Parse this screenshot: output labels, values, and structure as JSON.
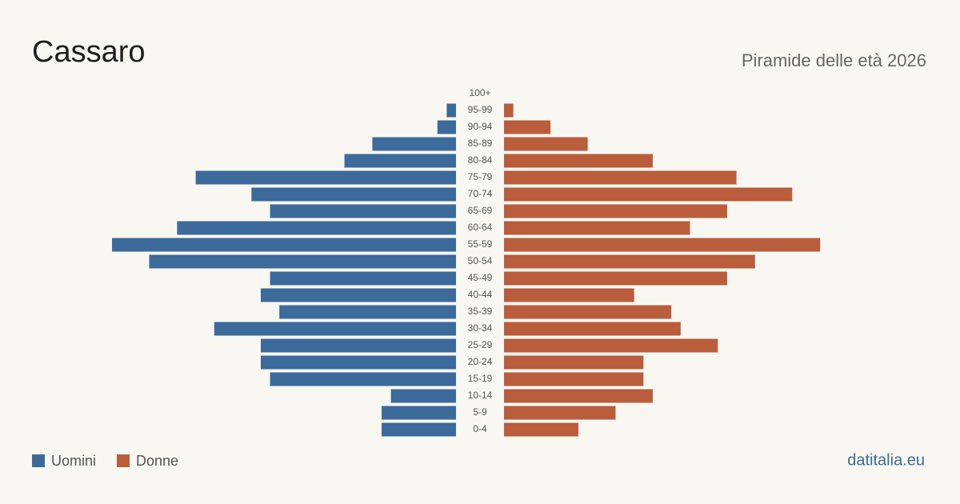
{
  "chart_data": {
    "type": "pyramid",
    "title": "Cassaro",
    "subtitle": "Piramide delle età 2026",
    "source": "datitalia.eu",
    "categories": [
      "100+",
      "95-99",
      "90-94",
      "85-89",
      "80-84",
      "75-79",
      "70-74",
      "65-69",
      "60-64",
      "55-59",
      "50-54",
      "45-49",
      "40-44",
      "35-39",
      "30-34",
      "25-29",
      "20-24",
      "15-19",
      "10-14",
      "5-9",
      "0-4"
    ],
    "series": [
      {
        "name": "Uomini",
        "color": "#3b6a9b",
        "values": [
          0,
          1,
          2,
          9,
          12,
          28,
          22,
          20,
          30,
          37,
          33,
          20,
          21,
          19,
          26,
          21,
          21,
          20,
          7,
          8,
          8
        ]
      },
      {
        "name": "Donne",
        "color": "#b95d3d",
        "values": [
          0,
          1,
          5,
          9,
          16,
          25,
          31,
          24,
          20,
          34,
          27,
          24,
          14,
          18,
          19,
          23,
          15,
          15,
          16,
          12,
          8
        ]
      }
    ]
  }
}
